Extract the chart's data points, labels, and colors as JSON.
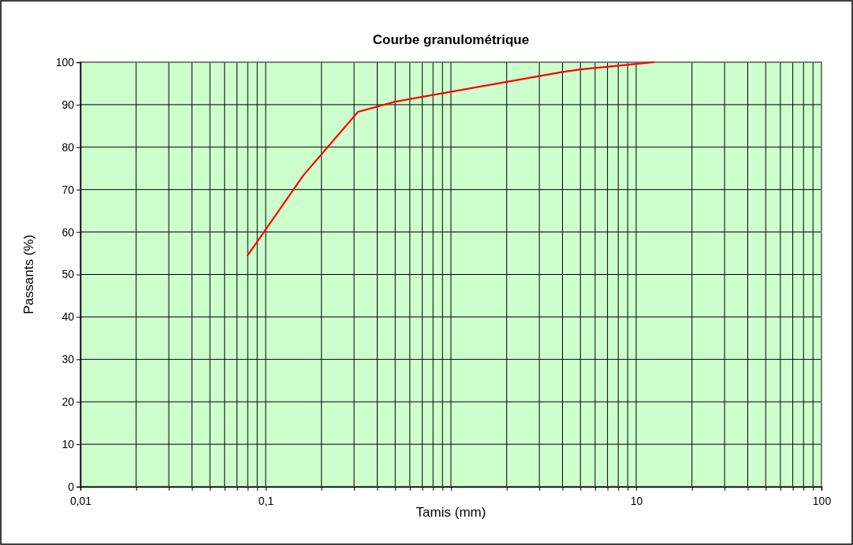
{
  "chart_data": {
    "type": "line",
    "title": "Courbe granulométrique",
    "xlabel": "Tamis (mm)",
    "ylabel": "Passants (%)",
    "log": "x",
    "grid": true,
    "marker": "none",
    "line_style": "solid",
    "xlim": [
      0.01,
      100
    ],
    "ylim": [
      0,
      100
    ],
    "xticks": [
      {
        "value": 0.01,
        "label": "0,01"
      },
      {
        "value": 0.02,
        "label": null
      },
      {
        "value": 0.03,
        "label": null
      },
      {
        "value": 0.04,
        "label": null
      },
      {
        "value": 0.05,
        "label": null
      },
      {
        "value": 0.06,
        "label": null
      },
      {
        "value": 0.07,
        "label": null
      },
      {
        "value": 0.08,
        "label": null
      },
      {
        "value": 0.09,
        "label": null
      },
      {
        "value": 0.1,
        "label": "0,1"
      },
      {
        "value": 0.2,
        "label": null
      },
      {
        "value": 0.3,
        "label": null
      },
      {
        "value": 0.4,
        "label": null
      },
      {
        "value": 0.5,
        "label": null
      },
      {
        "value": 0.6,
        "label": null
      },
      {
        "value": 0.7,
        "label": null
      },
      {
        "value": 0.8,
        "label": null
      },
      {
        "value": 0.9,
        "label": null
      },
      {
        "value": 1,
        "label": null
      },
      {
        "value": 2,
        "label": null
      },
      {
        "value": 3,
        "label": null
      },
      {
        "value": 4,
        "label": null
      },
      {
        "value": 5,
        "label": null
      },
      {
        "value": 6,
        "label": null
      },
      {
        "value": 7,
        "label": null
      },
      {
        "value": 8,
        "label": null
      },
      {
        "value": 9,
        "label": null
      },
      {
        "value": 10,
        "label": "10"
      },
      {
        "value": 20,
        "label": null
      },
      {
        "value": 30,
        "label": null
      },
      {
        "value": 40,
        "label": null
      },
      {
        "value": 50,
        "label": null
      },
      {
        "value": 60,
        "label": null
      },
      {
        "value": 70,
        "label": null
      },
      {
        "value": 80,
        "label": null
      },
      {
        "value": 90,
        "label": null
      },
      {
        "value": 100,
        "label": "100"
      }
    ],
    "yticks": [
      0,
      10,
      20,
      30,
      40,
      50,
      60,
      70,
      80,
      90,
      100
    ],
    "series": [
      {
        "color": "#ff0000",
        "x": [
          0.08,
          0.16,
          0.315,
          0.5,
          4,
          5,
          10,
          12.5
        ],
        "values": [
          54.5,
          73.4,
          88.3,
          90.7,
          97.7,
          98.3,
          99.6,
          100
        ]
      }
    ]
  }
}
